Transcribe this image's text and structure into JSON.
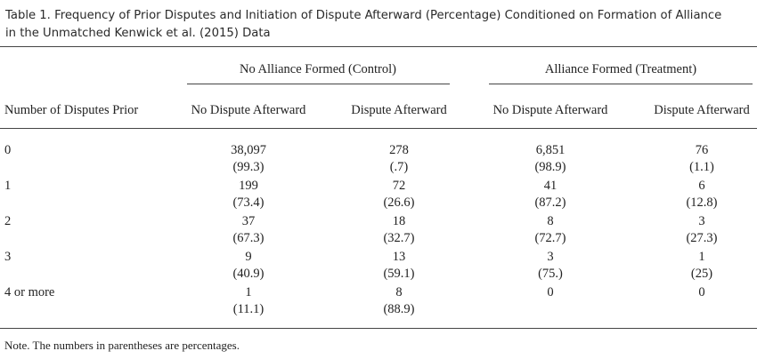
{
  "caption": {
    "line1": "Table 1. Frequency of Prior Disputes and Initiation of Dispute Afterward (Percentage) Conditioned on Formation of Alliance",
    "line2": "in the Unmatched Kenwick et al. (2015) Data"
  },
  "table": {
    "groups": [
      "No Alliance Formed (Control)",
      "Alliance Formed (Treatment)"
    ],
    "row_header": "Number of Disputes Prior",
    "columns": [
      "No Dispute Afterward",
      "Dispute Afterward",
      "No Dispute Afterward",
      "Dispute Afterward"
    ],
    "rows": [
      {
        "label": "0",
        "counts": [
          "38,097",
          "278",
          "6,851",
          "76"
        ],
        "pcts": [
          "(99.3)",
          "(.7)",
          "(98.9)",
          "(1.1)"
        ]
      },
      {
        "label": "1",
        "counts": [
          "199",
          "72",
          "41",
          "6"
        ],
        "pcts": [
          "(73.4)",
          "(26.6)",
          "(87.2)",
          "(12.8)"
        ]
      },
      {
        "label": "2",
        "counts": [
          "37",
          "18",
          "8",
          "3"
        ],
        "pcts": [
          "(67.3)",
          "(32.7)",
          "(72.7)",
          "(27.3)"
        ]
      },
      {
        "label": "3",
        "counts": [
          "9",
          "13",
          "3",
          "1"
        ],
        "pcts": [
          "(40.9)",
          "(59.1)",
          "(75.)",
          "(25)"
        ]
      },
      {
        "label": "4 or more",
        "counts": [
          "1",
          "8",
          "0",
          "0"
        ],
        "pcts": [
          "(11.1)",
          "(88.9)",
          "",
          ""
        ]
      }
    ]
  },
  "note": "Note. The numbers in parentheses are percentages."
}
